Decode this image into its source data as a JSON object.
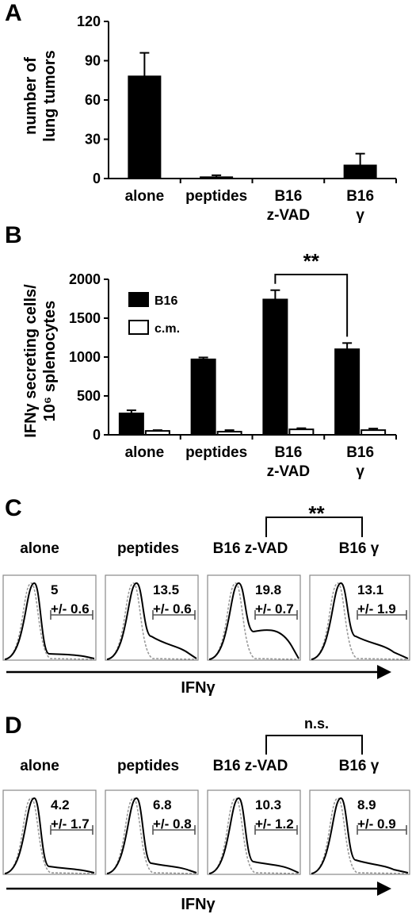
{
  "panels": {
    "a": {
      "letter": "A"
    },
    "b": {
      "letter": "B"
    },
    "c": {
      "letter": "C"
    },
    "d": {
      "letter": "D"
    }
  },
  "chart_data": [
    {
      "panel": "A",
      "type": "bar",
      "ylabel_lines": [
        "number of",
        "lung tumors"
      ],
      "ylim": [
        0,
        120
      ],
      "yticks": [
        0,
        30,
        60,
        90,
        120
      ],
      "categories": [
        [
          "alone"
        ],
        [
          "peptides"
        ],
        [
          "B16",
          "z-VAD"
        ],
        [
          "B16",
          "γ"
        ]
      ],
      "series": [
        {
          "values": [
            78,
            1,
            0,
            10
          ],
          "errors": [
            18,
            1.5,
            0,
            9
          ],
          "color": "#000000"
        }
      ]
    },
    {
      "panel": "B",
      "type": "bar",
      "ylabel_lines": [
        "IFNγ secreting cells/",
        "10⁶ splenocytes"
      ],
      "ylim": [
        0,
        2000
      ],
      "yticks": [
        0,
        500,
        1000,
        1500,
        2000
      ],
      "categories": [
        [
          "alone"
        ],
        [
          "peptides"
        ],
        [
          "B16",
          "z-VAD"
        ],
        [
          "B16",
          "γ"
        ]
      ],
      "series": [
        {
          "name": "B16",
          "values": [
            275,
            970,
            1740,
            1100
          ],
          "errors": [
            40,
            25,
            120,
            80
          ],
          "color": "#000000"
        },
        {
          "name": "c.m.",
          "values": [
            50,
            40,
            70,
            60
          ],
          "errors": [
            10,
            20,
            15,
            20
          ],
          "color": "#ffffff"
        }
      ],
      "significance": {
        "label": "**",
        "between": [
          2,
          3
        ]
      }
    },
    {
      "panel": "C",
      "type": "histogram",
      "axis_label": "IFNγ",
      "significance": {
        "label": "**",
        "between": [
          2,
          3
        ]
      },
      "plots": [
        {
          "category": "alone",
          "percent": "5",
          "sd": "+/- 0.6"
        },
        {
          "category": "peptides",
          "percent": "13.5",
          "sd": "+/- 0.6"
        },
        {
          "category": "B16 z-VAD",
          "percent": "19.8",
          "sd": "+/- 0.7"
        },
        {
          "category": "B16 γ",
          "percent": "13.1",
          "sd": "+/- 1.9"
        }
      ]
    },
    {
      "panel": "D",
      "type": "histogram",
      "axis_label": "IFNγ",
      "significance": {
        "label": "n.s.",
        "between": [
          2,
          3
        ]
      },
      "plots": [
        {
          "category": "alone",
          "percent": "4.2",
          "sd": "+/- 1.7"
        },
        {
          "category": "peptides",
          "percent": "6.8",
          "sd": "+/- 0.8"
        },
        {
          "category": "B16 z-VAD",
          "percent": "10.3",
          "sd": "+/- 1.2"
        },
        {
          "category": "B16 γ",
          "percent": "8.9",
          "sd": "+/- 0.9"
        }
      ]
    }
  ]
}
